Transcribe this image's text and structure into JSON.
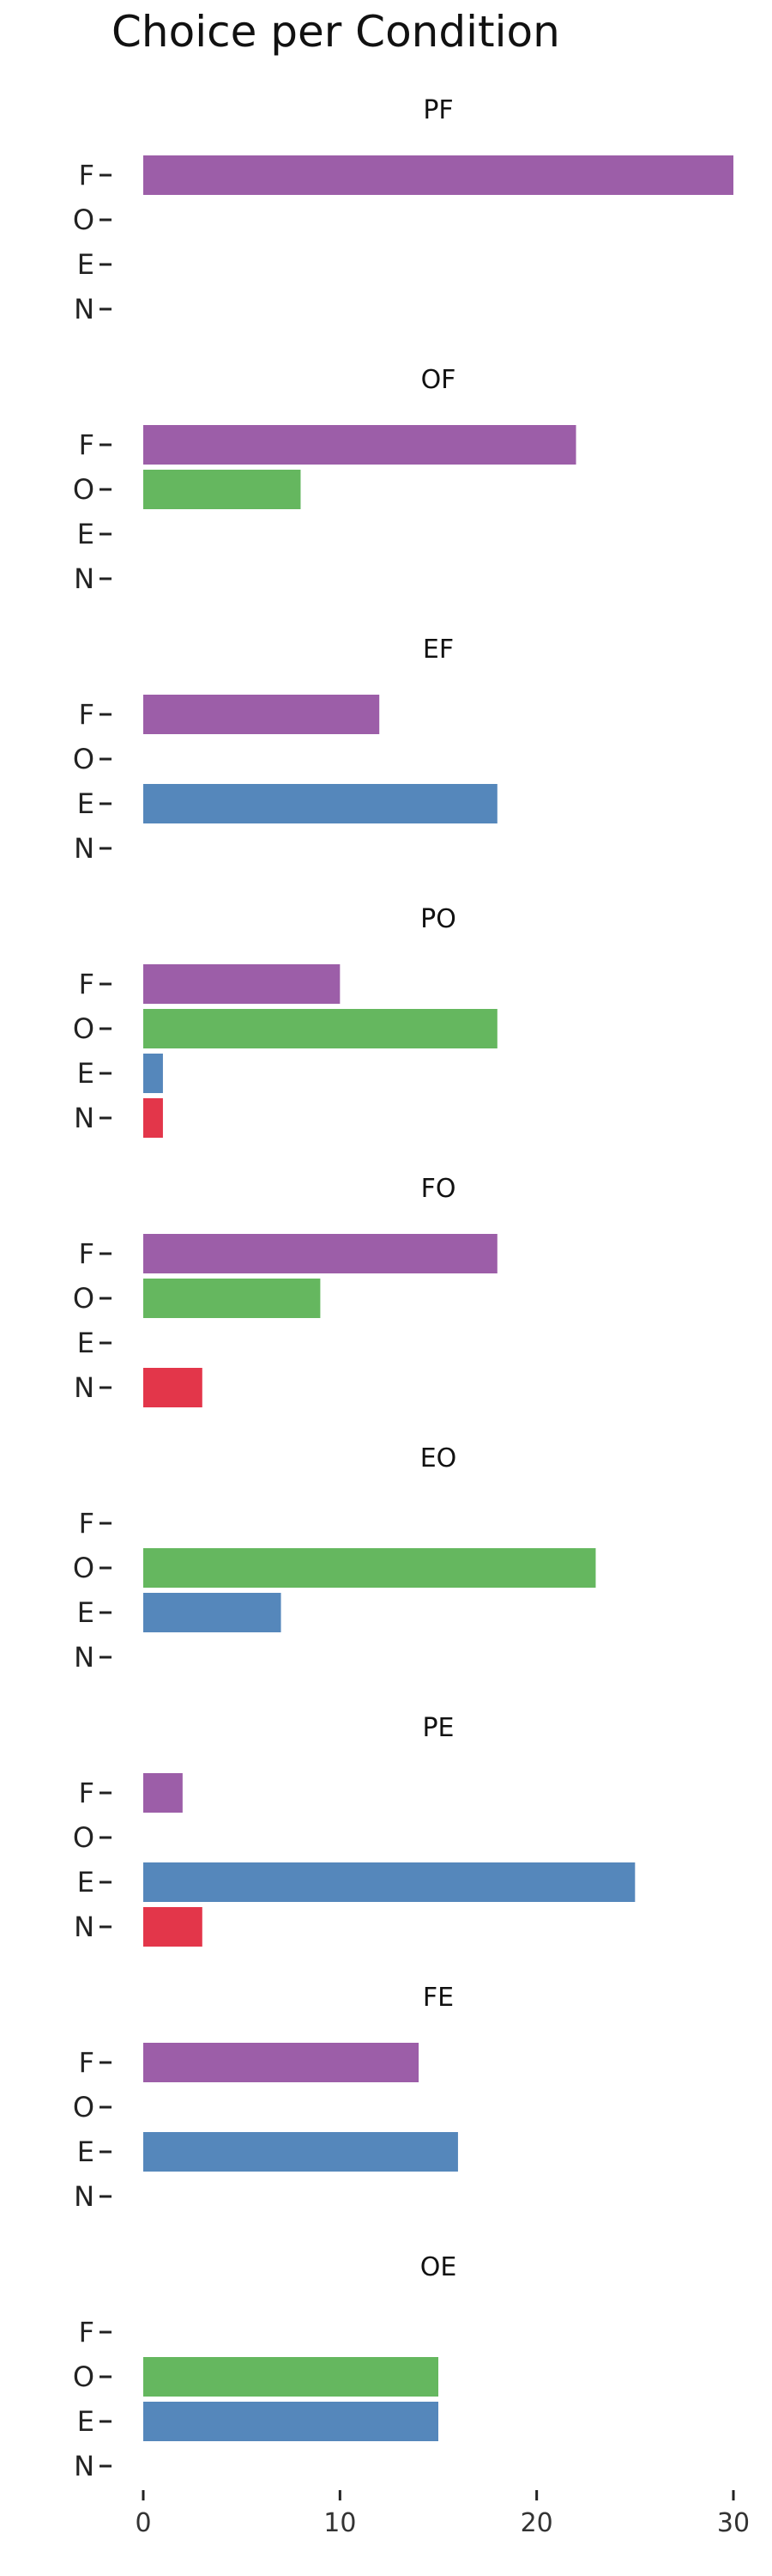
{
  "title": "Choice per Condition",
  "colors": {
    "F": "#9c5ea8",
    "O": "#65b75f",
    "E": "#5587bb",
    "N": "#e3364a"
  },
  "chart_data": {
    "type": "bar",
    "orientation": "horizontal",
    "title": "Choice per Condition",
    "categories": [
      "F",
      "O",
      "E",
      "N"
    ],
    "xlim": [
      0,
      30
    ],
    "xticks": [
      0,
      10,
      20,
      30
    ],
    "grid": false,
    "panels": [
      {
        "name": "PF",
        "values": [
          30,
          0,
          0,
          0
        ]
      },
      {
        "name": "OF",
        "values": [
          22,
          8,
          0,
          0
        ]
      },
      {
        "name": "EF",
        "values": [
          12,
          0,
          18,
          0
        ]
      },
      {
        "name": "PO",
        "values": [
          10,
          18,
          1,
          1
        ]
      },
      {
        "name": "FO",
        "values": [
          18,
          9,
          0,
          3
        ]
      },
      {
        "name": "EO",
        "values": [
          0,
          23,
          7,
          0
        ]
      },
      {
        "name": "PE",
        "values": [
          2,
          0,
          25,
          3
        ]
      },
      {
        "name": "FE",
        "values": [
          14,
          0,
          16,
          0
        ]
      },
      {
        "name": "OE",
        "values": [
          0,
          15,
          15,
          0
        ]
      }
    ]
  }
}
